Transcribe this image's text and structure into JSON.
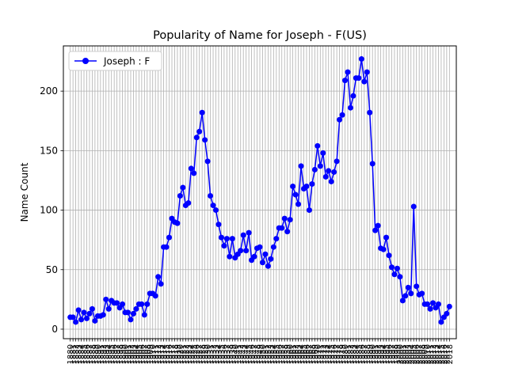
{
  "chart_data": {
    "type": "line",
    "title": "Popularity of Name for Joseph - F(US)",
    "xlabel": "",
    "ylabel": "Name Count",
    "x_start": 1880,
    "x_end": 2018,
    "ylim": [
      -8,
      238
    ],
    "yticks": [
      0,
      50,
      100,
      150,
      200
    ],
    "grid": true,
    "legend": {
      "position": "top-left"
    },
    "series": [
      {
        "name": "Joseph : F",
        "color": "#0000ff",
        "marker": "circle",
        "x": [
          1880,
          1881,
          1882,
          1883,
          1884,
          1885,
          1886,
          1887,
          1888,
          1889,
          1890,
          1891,
          1892,
          1893,
          1894,
          1895,
          1896,
          1897,
          1898,
          1899,
          1900,
          1901,
          1902,
          1903,
          1904,
          1905,
          1906,
          1907,
          1908,
          1909,
          1910,
          1911,
          1912,
          1913,
          1914,
          1915,
          1916,
          1917,
          1918,
          1919,
          1920,
          1921,
          1922,
          1923,
          1924,
          1925,
          1926,
          1927,
          1928,
          1929,
          1930,
          1931,
          1932,
          1933,
          1934,
          1935,
          1936,
          1937,
          1938,
          1939,
          1940,
          1941,
          1942,
          1943,
          1944,
          1945,
          1946,
          1947,
          1948,
          1949,
          1950,
          1951,
          1952,
          1953,
          1954,
          1955,
          1956,
          1957,
          1958,
          1959,
          1960,
          1961,
          1962,
          1963,
          1964,
          1965,
          1966,
          1967,
          1968,
          1969,
          1970,
          1971,
          1972,
          1973,
          1974,
          1975,
          1976,
          1977,
          1978,
          1979,
          1980,
          1981,
          1982,
          1983,
          1984,
          1985,
          1986,
          1987,
          1988,
          1989,
          1990,
          1991,
          1992,
          1993,
          1994,
          1995,
          1996,
          1997,
          1998,
          1999,
          2000,
          2001,
          2002,
          2003,
          2004,
          2005,
          2006,
          2007,
          2008,
          2009,
          2010,
          2011,
          2012,
          2013,
          2014,
          2015,
          2016,
          2017,
          2018
        ],
        "values": [
          10,
          10,
          6,
          16,
          8,
          14,
          9,
          13,
          17,
          7,
          11,
          11,
          12,
          25,
          17,
          24,
          22,
          22,
          18,
          21,
          14,
          14,
          8,
          13,
          17,
          21,
          21,
          12,
          21,
          30,
          30,
          28,
          44,
          38,
          69,
          69,
          77,
          93,
          90,
          89,
          112,
          119,
          104,
          106,
          135,
          131,
          161,
          166,
          182,
          159,
          141,
          112,
          104,
          100,
          88,
          77,
          70,
          76,
          61,
          76,
          60,
          63,
          66,
          79,
          66,
          81,
          58,
          61,
          68,
          69,
          56,
          63,
          53,
          59,
          69,
          76,
          85,
          85,
          93,
          82,
          92,
          120,
          113,
          105,
          137,
          118,
          120,
          100,
          122,
          134,
          154,
          137,
          148,
          128,
          133,
          124,
          132,
          141,
          176,
          180,
          209,
          216,
          186,
          196,
          211,
          211,
          227,
          208,
          216,
          182,
          139,
          83,
          87,
          68,
          67,
          77,
          62,
          52,
          46,
          51,
          44,
          24,
          28,
          35,
          30,
          103,
          36,
          29,
          30,
          21,
          21,
          17,
          22,
          18,
          21,
          6,
          10,
          13,
          19
        ]
      }
    ]
  }
}
